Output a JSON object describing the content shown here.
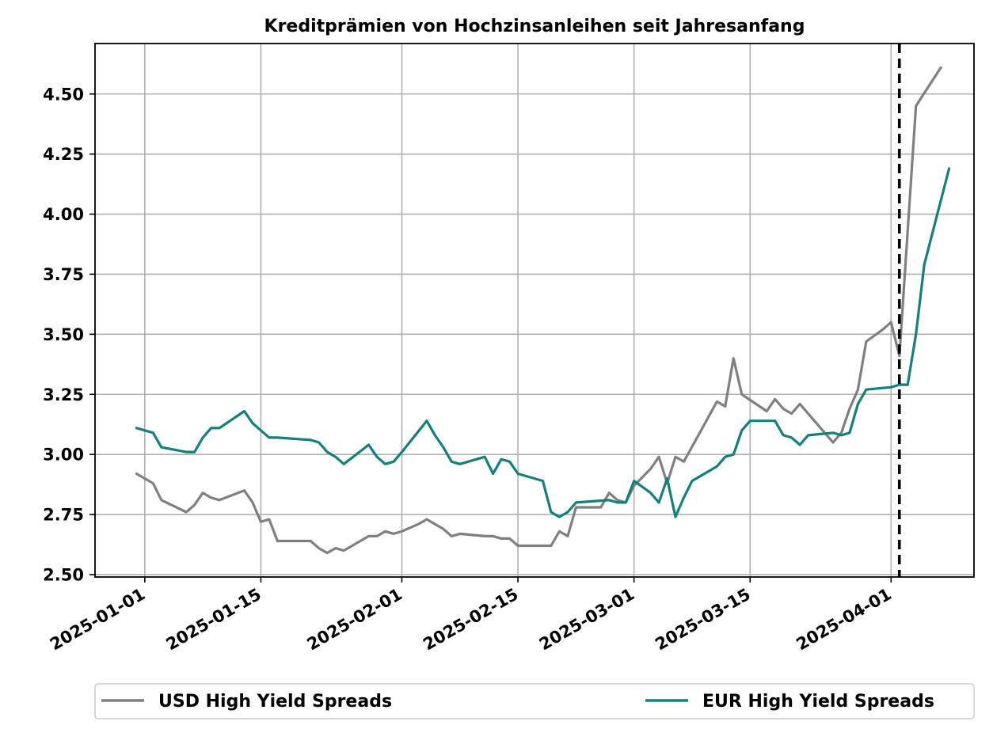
{
  "chart_data": {
    "type": "line",
    "title": "Kreditprämien von Hochzinsanleihen seit Jahresanfang",
    "xlabel": "",
    "ylabel": "",
    "xlim": [
      "2024-12-26",
      "2025-04-11"
    ],
    "ylim": [
      2.49,
      4.71
    ],
    "x_ticks": [
      "2025-01-01",
      "2025-01-15",
      "2025-02-01",
      "2025-02-15",
      "2025-03-01",
      "2025-03-15",
      "2025-04-01"
    ],
    "y_ticks": [
      "2.50",
      "2.75",
      "3.00",
      "3.25",
      "3.50",
      "3.75",
      "4.00",
      "4.25",
      "4.50"
    ],
    "grid": true,
    "legend_position": "bottom",
    "vline": {
      "x": "2025-04-02",
      "style": "dashed",
      "color": "#000000"
    },
    "series": [
      {
        "name": "USD High Yield Spreads",
        "color": "#808080",
        "points": [
          [
            "2024-12-31",
            2.92
          ],
          [
            "2025-01-02",
            2.88
          ],
          [
            "2025-01-03",
            2.81
          ],
          [
            "2025-01-06",
            2.76
          ],
          [
            "2025-01-07",
            2.79
          ],
          [
            "2025-01-08",
            2.84
          ],
          [
            "2025-01-09",
            2.82
          ],
          [
            "2025-01-10",
            2.81
          ],
          [
            "2025-01-13",
            2.85
          ],
          [
            "2025-01-14",
            2.8
          ],
          [
            "2025-01-15",
            2.72
          ],
          [
            "2025-01-16",
            2.73
          ],
          [
            "2025-01-17",
            2.64
          ],
          [
            "2025-01-21",
            2.64
          ],
          [
            "2025-01-22",
            2.61
          ],
          [
            "2025-01-23",
            2.59
          ],
          [
            "2025-01-24",
            2.61
          ],
          [
            "2025-01-25",
            2.6
          ],
          [
            "2025-01-28",
            2.66
          ],
          [
            "2025-01-29",
            2.66
          ],
          [
            "2025-01-30",
            2.68
          ],
          [
            "2025-01-31",
            2.67
          ],
          [
            "2025-02-01",
            2.68
          ],
          [
            "2025-02-03",
            2.71
          ],
          [
            "2025-02-04",
            2.73
          ],
          [
            "2025-02-06",
            2.69
          ],
          [
            "2025-02-07",
            2.66
          ],
          [
            "2025-02-08",
            2.67
          ],
          [
            "2025-02-11",
            2.66
          ],
          [
            "2025-02-12",
            2.66
          ],
          [
            "2025-02-13",
            2.65
          ],
          [
            "2025-02-14",
            2.65
          ],
          [
            "2025-02-15",
            2.62
          ],
          [
            "2025-02-19",
            2.62
          ],
          [
            "2025-02-20",
            2.68
          ],
          [
            "2025-02-21",
            2.66
          ],
          [
            "2025-02-22",
            2.78
          ],
          [
            "2025-02-25",
            2.78
          ],
          [
            "2025-02-26",
            2.84
          ],
          [
            "2025-02-27",
            2.81
          ],
          [
            "2025-02-28",
            2.8
          ],
          [
            "2025-03-01",
            2.87
          ],
          [
            "2025-03-03",
            2.94
          ],
          [
            "2025-03-04",
            2.99
          ],
          [
            "2025-03-05",
            2.88
          ],
          [
            "2025-03-06",
            2.99
          ],
          [
            "2025-03-07",
            2.97
          ],
          [
            "2025-03-11",
            3.22
          ],
          [
            "2025-03-12",
            3.2
          ],
          [
            "2025-03-13",
            3.4
          ],
          [
            "2025-03-14",
            3.25
          ],
          [
            "2025-03-17",
            3.18
          ],
          [
            "2025-03-18",
            3.23
          ],
          [
            "2025-03-19",
            3.19
          ],
          [
            "2025-03-20",
            3.17
          ],
          [
            "2025-03-21",
            3.21
          ],
          [
            "2025-03-25",
            3.05
          ],
          [
            "2025-03-26",
            3.09
          ],
          [
            "2025-03-27",
            3.19
          ],
          [
            "2025-03-28",
            3.27
          ],
          [
            "2025-03-29",
            3.47
          ],
          [
            "2025-03-31",
            3.52
          ],
          [
            "2025-04-01",
            3.55
          ],
          [
            "2025-04-02",
            3.41
          ],
          [
            "2025-04-04",
            4.45
          ],
          [
            "2025-04-07",
            4.61
          ]
        ]
      },
      {
        "name": "EUR High Yield Spreads",
        "color": "#14807a",
        "points": [
          [
            "2024-12-31",
            3.11
          ],
          [
            "2025-01-02",
            3.09
          ],
          [
            "2025-01-03",
            3.03
          ],
          [
            "2025-01-06",
            3.01
          ],
          [
            "2025-01-07",
            3.01
          ],
          [
            "2025-01-08",
            3.07
          ],
          [
            "2025-01-09",
            3.11
          ],
          [
            "2025-01-10",
            3.11
          ],
          [
            "2025-01-13",
            3.18
          ],
          [
            "2025-01-14",
            3.13
          ],
          [
            "2025-01-16",
            3.07
          ],
          [
            "2025-01-17",
            3.07
          ],
          [
            "2025-01-21",
            3.06
          ],
          [
            "2025-01-22",
            3.05
          ],
          [
            "2025-01-23",
            3.01
          ],
          [
            "2025-01-24",
            2.99
          ],
          [
            "2025-01-25",
            2.96
          ],
          [
            "2025-01-28",
            3.04
          ],
          [
            "2025-01-29",
            2.99
          ],
          [
            "2025-01-30",
            2.96
          ],
          [
            "2025-01-31",
            2.97
          ],
          [
            "2025-02-01",
            3.01
          ],
          [
            "2025-02-04",
            3.14
          ],
          [
            "2025-02-05",
            3.08
          ],
          [
            "2025-02-06",
            3.03
          ],
          [
            "2025-02-07",
            2.97
          ],
          [
            "2025-02-08",
            2.96
          ],
          [
            "2025-02-11",
            2.99
          ],
          [
            "2025-02-12",
            2.92
          ],
          [
            "2025-02-13",
            2.98
          ],
          [
            "2025-02-14",
            2.97
          ],
          [
            "2025-02-15",
            2.92
          ],
          [
            "2025-02-18",
            2.89
          ],
          [
            "2025-02-19",
            2.76
          ],
          [
            "2025-02-20",
            2.74
          ],
          [
            "2025-02-21",
            2.76
          ],
          [
            "2025-02-22",
            2.8
          ],
          [
            "2025-02-26",
            2.81
          ],
          [
            "2025-02-27",
            2.8
          ],
          [
            "2025-02-28",
            2.8
          ],
          [
            "2025-03-01",
            2.89
          ],
          [
            "2025-03-03",
            2.84
          ],
          [
            "2025-03-04",
            2.8
          ],
          [
            "2025-03-05",
            2.9
          ],
          [
            "2025-03-06",
            2.74
          ],
          [
            "2025-03-07",
            2.82
          ],
          [
            "2025-03-08",
            2.89
          ],
          [
            "2025-03-11",
            2.95
          ],
          [
            "2025-03-12",
            2.99
          ],
          [
            "2025-03-13",
            3.0
          ],
          [
            "2025-03-14",
            3.1
          ],
          [
            "2025-03-15",
            3.14
          ],
          [
            "2025-03-18",
            3.14
          ],
          [
            "2025-03-19",
            3.08
          ],
          [
            "2025-03-20",
            3.07
          ],
          [
            "2025-03-21",
            3.04
          ],
          [
            "2025-03-22",
            3.08
          ],
          [
            "2025-03-25",
            3.09
          ],
          [
            "2025-03-26",
            3.08
          ],
          [
            "2025-03-27",
            3.09
          ],
          [
            "2025-03-28",
            3.21
          ],
          [
            "2025-03-29",
            3.27
          ],
          [
            "2025-04-01",
            3.28
          ],
          [
            "2025-04-02",
            3.29
          ],
          [
            "2025-04-03",
            3.29
          ],
          [
            "2025-04-04",
            3.5
          ],
          [
            "2025-04-05",
            3.79
          ],
          [
            "2025-04-08",
            4.19
          ]
        ]
      }
    ]
  }
}
